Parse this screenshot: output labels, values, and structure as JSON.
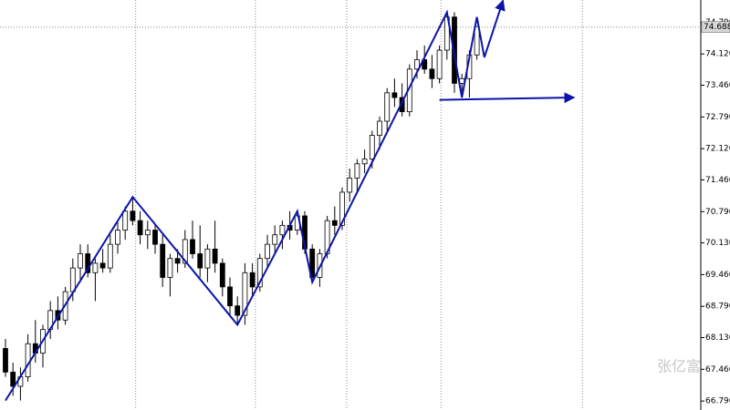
{
  "chart_data": {
    "type": "candlestick",
    "ylim": [
      66.6,
      75.26
    ],
    "yticks": [
      {
        "value": 74.79,
        "label": "74.790"
      },
      {
        "value": 74.12,
        "label": "74.120"
      },
      {
        "value": 73.46,
        "label": "73.460"
      },
      {
        "value": 72.79,
        "label": "72.790"
      },
      {
        "value": 72.12,
        "label": "72.120"
      },
      {
        "value": 71.46,
        "label": "71.460"
      },
      {
        "value": 70.79,
        "label": "70.790"
      },
      {
        "value": 70.13,
        "label": "70.130"
      },
      {
        "value": 69.46,
        "label": "69.460"
      },
      {
        "value": 68.79,
        "label": "68.790"
      },
      {
        "value": 68.13,
        "label": "68.130"
      },
      {
        "value": 67.46,
        "label": "67.460"
      },
      {
        "value": 66.79,
        "label": "66.790"
      }
    ],
    "current_price": {
      "value": 74.688,
      "label": "74.688"
    },
    "vlines": [
      17.4,
      33.4,
      45.6,
      58.2,
      77.1
    ],
    "open": [
      67.9,
      67.4,
      67.1,
      67.3,
      68.0,
      67.8,
      68.3,
      68.7,
      68.5,
      69.1,
      69.6,
      69.9,
      69.5,
      69.7,
      69.6,
      70.1,
      70.4,
      70.8,
      70.6,
      70.3,
      70.4,
      70.1,
      69.4,
      69.8,
      69.7,
      70.2,
      69.9,
      69.6,
      70.0,
      69.7,
      69.2,
      68.8,
      68.6,
      69.5,
      69.2,
      69.8,
      70.1,
      70.3,
      70.5,
      70.4,
      70.7,
      70.0,
      69.4,
      69.9,
      70.6,
      70.5,
      71.2,
      71.5,
      71.8,
      71.9,
      72.4,
      72.7,
      73.3,
      73.2,
      72.9,
      73.8,
      74.0,
      73.8,
      73.6,
      74.2,
      74.9,
      73.5,
      73.6,
      74.1
    ],
    "high": [
      68.1,
      67.6,
      67.5,
      68.2,
      68.5,
      68.4,
      68.9,
      69.0,
      69.2,
      69.8,
      70.1,
      70.1,
      69.8,
      70.0,
      70.3,
      70.6,
      70.9,
      71.1,
      70.8,
      70.6,
      70.5,
      70.3,
      69.9,
      70.0,
      70.4,
      70.6,
      70.5,
      70.1,
      70.6,
      69.8,
      69.4,
      69.0,
      69.7,
      69.7,
      69.9,
      70.3,
      70.5,
      70.6,
      70.8,
      70.8,
      70.8,
      70.1,
      70.0,
      70.7,
      70.9,
      71.3,
      71.7,
      71.9,
      72.1,
      72.5,
      72.8,
      73.4,
      73.6,
      73.5,
      73.9,
      74.2,
      74.3,
      74.1,
      74.3,
      75.0,
      75.0,
      73.7,
      74.2,
      74.7
    ],
    "low": [
      67.3,
      66.9,
      66.8,
      67.2,
      67.6,
      67.5,
      68.1,
      68.3,
      68.4,
      68.9,
      69.3,
      69.4,
      68.9,
      69.5,
      69.5,
      69.9,
      70.2,
      70.5,
      70.1,
      70.0,
      69.9,
      69.2,
      69.0,
      69.5,
      69.6,
      69.8,
      69.4,
      69.3,
      69.5,
      69.0,
      68.6,
      68.4,
      68.4,
      69.0,
      69.1,
      69.6,
      69.9,
      70.0,
      70.2,
      70.3,
      69.9,
      69.3,
      69.2,
      69.8,
      70.3,
      70.4,
      71.0,
      71.2,
      71.6,
      71.7,
      72.1,
      72.5,
      73.0,
      72.8,
      72.8,
      73.6,
      73.7,
      73.4,
      73.5,
      74.0,
      73.3,
      73.2,
      73.2,
      74.0
    ],
    "close": [
      67.4,
      67.1,
      67.3,
      68.0,
      67.8,
      68.3,
      68.7,
      68.5,
      69.1,
      69.6,
      69.9,
      69.5,
      69.7,
      69.6,
      70.1,
      70.4,
      70.8,
      70.6,
      70.3,
      70.4,
      70.1,
      69.4,
      69.8,
      69.7,
      70.2,
      69.9,
      69.6,
      70.0,
      69.7,
      69.2,
      68.8,
      68.6,
      69.5,
      69.2,
      69.8,
      70.1,
      70.3,
      70.5,
      70.4,
      70.7,
      70.0,
      69.4,
      69.9,
      70.6,
      70.5,
      71.2,
      71.5,
      71.8,
      71.9,
      72.4,
      72.7,
      73.3,
      73.2,
      72.9,
      73.8,
      74.0,
      73.8,
      73.6,
      74.2,
      74.9,
      73.5,
      73.6,
      74.1,
      74.7
    ],
    "overlays": [
      {
        "color": "#0c14a8",
        "x": [
          0,
          17,
          31,
          39,
          41,
          59,
          61,
          63,
          64,
          66.5
        ],
        "values": [
          66.8,
          71.1,
          68.4,
          70.8,
          69.3,
          75.0,
          73.2,
          74.9,
          74.05,
          75.25
        ]
      },
      {
        "color": "#0c14a8",
        "x": [
          58,
          76
        ],
        "values": [
          73.15,
          73.2
        ]
      }
    ],
    "watermark": "张亿富"
  }
}
